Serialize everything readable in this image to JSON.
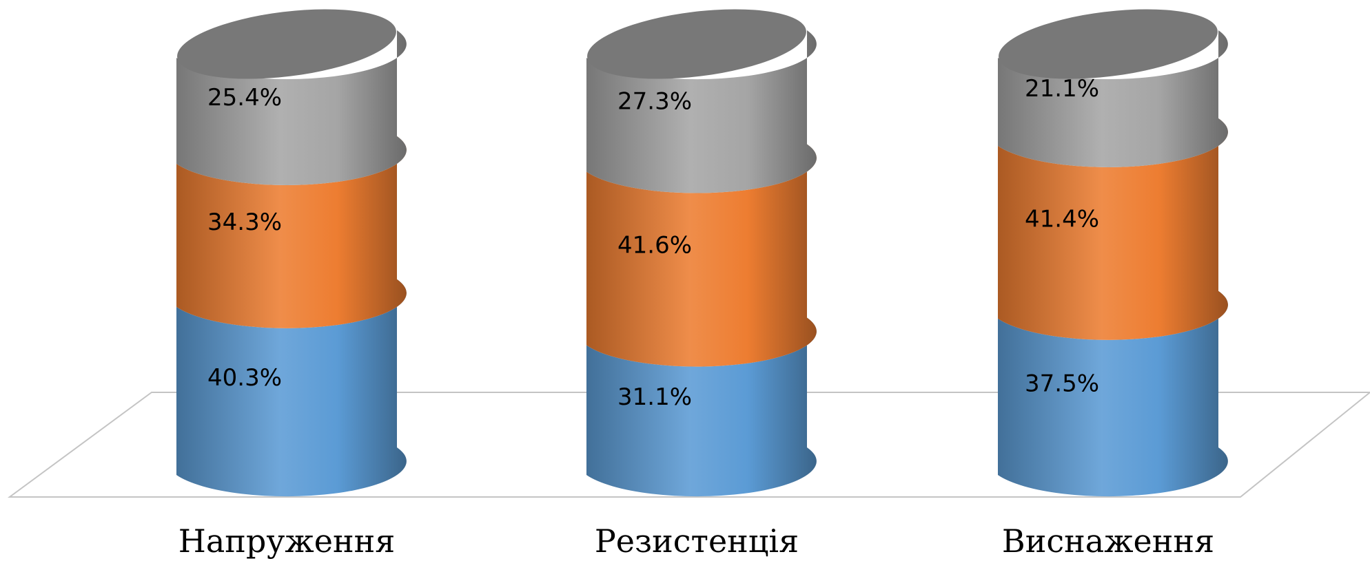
{
  "chart_data": {
    "type": "bar",
    "stacked": true,
    "style": "3d-cylinder",
    "title": "",
    "xlabel": "",
    "ylabel": "",
    "ylim": [
      0,
      100
    ],
    "grid": false,
    "legend": "none",
    "categories": [
      "Напруження",
      "Резистенція",
      "Виснаження"
    ],
    "series": [
      {
        "values": [
          40.3,
          31.1,
          37.5
        ],
        "labels": [
          "40.3%",
          "31.1%",
          "37.5%"
        ],
        "color": "#5B9BD5"
      },
      {
        "values": [
          34.3,
          41.6,
          41.4
        ],
        "labels": [
          "34.3%",
          "41.6%",
          "41.4%"
        ],
        "color": "#ED7D31"
      },
      {
        "values": [
          25.4,
          27.3,
          21.1
        ],
        "labels": [
          "25.4%",
          "27.3%",
          "21.1%"
        ],
        "color": "#A5A5A5"
      }
    ]
  }
}
